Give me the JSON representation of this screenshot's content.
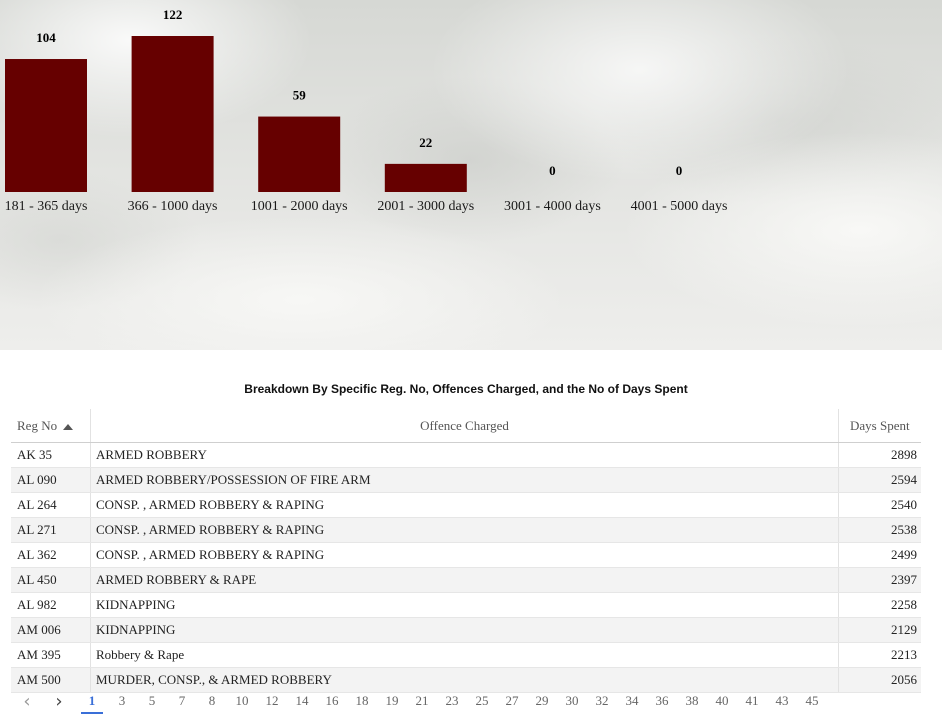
{
  "chart_data": {
    "type": "bar",
    "categories": [
      "181 - 365 days",
      "366 - 1000 days",
      "1001 - 2000 days",
      "2001 - 3000 days",
      "3001 - 4000 days",
      "4001 - 5000 days"
    ],
    "values": [
      104,
      122,
      59,
      22,
      0,
      0
    ],
    "value_labels": [
      "104",
      "122",
      "59",
      "22",
      "0",
      "0"
    ],
    "bar_color": "#660000",
    "grid": false
  },
  "table": {
    "title": "Breakdown By Specific Reg. No, Offences Charged, and the No of Days Spent",
    "columns": [
      "Reg No",
      "Offence Charged",
      "Days Spent"
    ],
    "rows": [
      [
        "AK 35",
        "ARMED ROBBERY",
        "2898"
      ],
      [
        "AL 090",
        "ARMED ROBBERY/POSSESSION OF FIRE ARM",
        "2594"
      ],
      [
        "AL 264",
        "CONSP. , ARMED ROBBERY & RAPING",
        "2540"
      ],
      [
        "AL 271",
        "CONSP. , ARMED ROBBERY & RAPING",
        "2538"
      ],
      [
        "AL 362",
        "CONSP. , ARMED ROBBERY & RAPING",
        "2499"
      ],
      [
        "AL 450",
        "ARMED ROBBERY & RAPE",
        "2397"
      ],
      [
        "AL 982",
        "KIDNAPPING",
        "2258"
      ],
      [
        "AM 006",
        "KIDNAPPING",
        "2129"
      ],
      [
        "AM 395",
        "Robbery & Rape",
        "2213"
      ],
      [
        "AM 500",
        "MURDER, CONSP., & ARMED ROBBERY",
        "2056"
      ]
    ],
    "sort_icon": "sort-ascending-icon"
  },
  "pagination": {
    "prev_icon": "chevron-left-icon",
    "next_icon": "chevron-right-icon",
    "prev_glyph": "‹",
    "next_glyph": "›",
    "active_page": "1",
    "pages": [
      "1",
      "3",
      "5",
      "7",
      "8",
      "10",
      "12",
      "14",
      "16",
      "18",
      "19",
      "21",
      "23",
      "25",
      "27",
      "29",
      "30",
      "32",
      "34",
      "36",
      "38",
      "40",
      "41",
      "43",
      "45"
    ],
    "accent_color": "#3a6fd8"
  }
}
